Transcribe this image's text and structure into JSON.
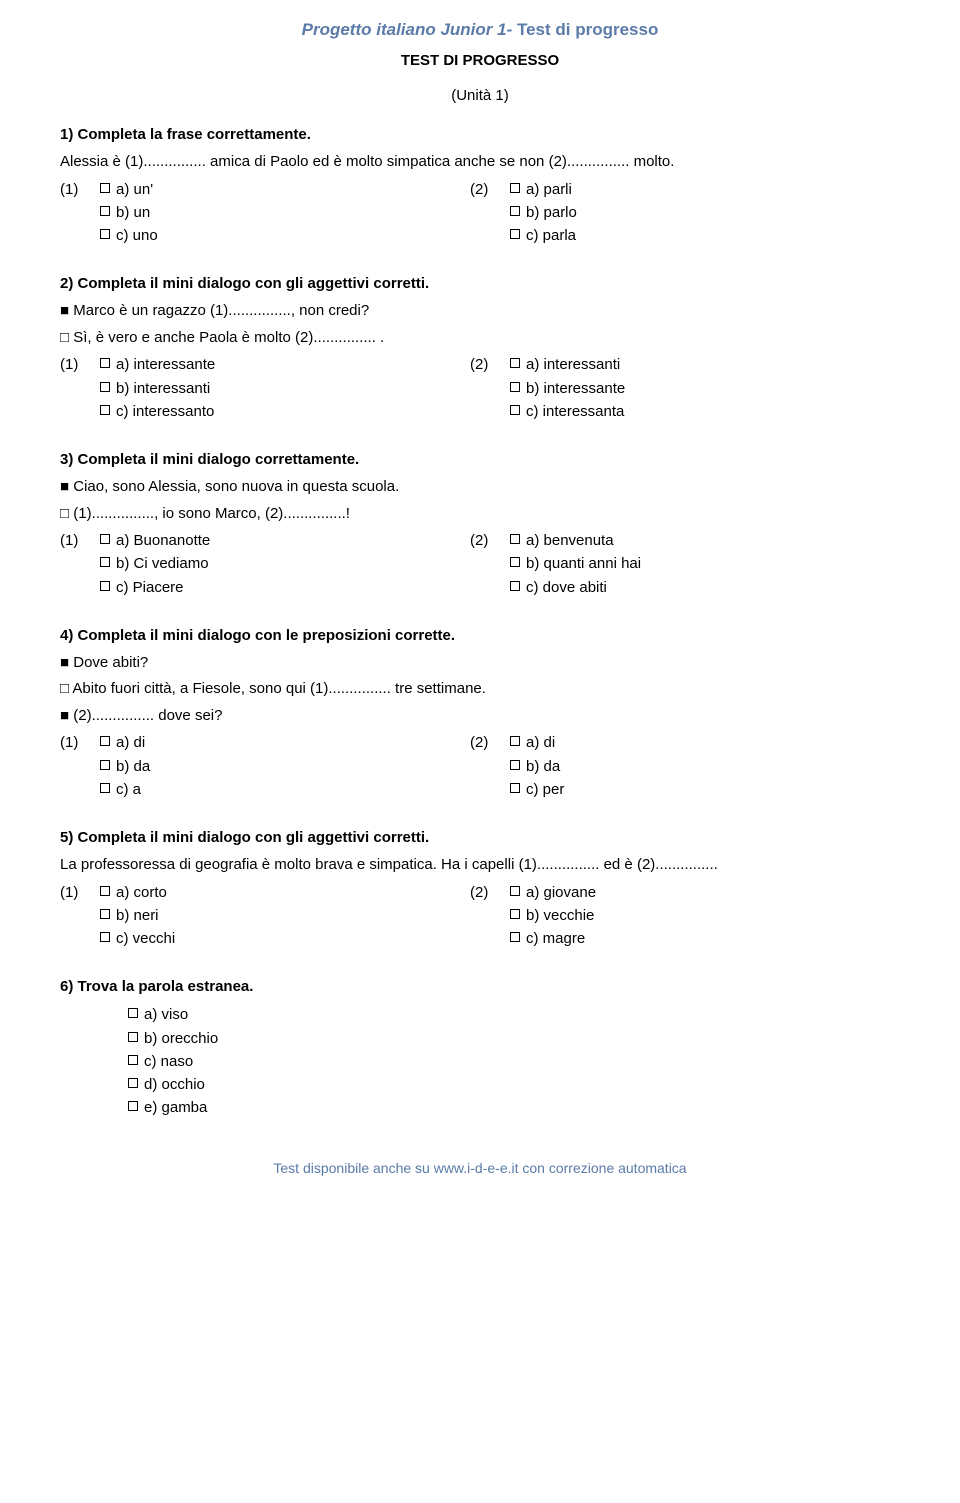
{
  "header": {
    "italic": "Progetto italiano Junior 1-",
    "bold": " Test di progresso",
    "subtitle": "TEST DI PROGRESSO",
    "unit": "(Unità 1)"
  },
  "q1": {
    "title": "1) Completa la frase correttamente.",
    "text": "Alessia è (1)............... amica di Paolo ed è molto simpatica anche se non (2)............... molto.",
    "m1": "(1)",
    "m2": "(2)",
    "a1": "a) un'",
    "b1": "b) un",
    "c1": "c) uno",
    "a2": "a) parli",
    "b2": "b) parlo",
    "c2": "c) parla"
  },
  "q2": {
    "title": "2) Completa il mini dialogo con gli aggettivi corretti.",
    "l1": "Marco è un ragazzo (1)..............., non credi?",
    "l2": "Sì, è vero e anche Paola è molto (2)............... .",
    "m1": "(1)",
    "m2": "(2)",
    "a1": "a) interessante",
    "b1": "b) interessanti",
    "c1": "c) interessanto",
    "a2": "a) interessanti",
    "b2": "b) interessante",
    "c2": "c) interessanta"
  },
  "q3": {
    "title": "3) Completa il mini dialogo correttamente.",
    "l1": "Ciao, sono Alessia, sono nuova in questa scuola.",
    "l2": "(1)..............., io sono Marco, (2)...............!",
    "m1": "(1)",
    "m2": "(2)",
    "a1": "a) Buonanotte",
    "b1": "b) Ci vediamo",
    "c1": "c) Piacere",
    "a2": "a) benvenuta",
    "b2": "b) quanti anni hai",
    "c2": "c) dove abiti"
  },
  "q4": {
    "title": "4) Completa il mini dialogo con le preposizioni corrette.",
    "l1": "Dove abiti?",
    "l2": "Abito fuori città, a Fiesole, sono qui (1)............... tre settimane.",
    "l3": "(2)............... dove sei?",
    "m1": "(1)",
    "m2": "(2)",
    "a1": "a) di",
    "b1": "b) da",
    "c1": "c) a",
    "a2": "a) di",
    "b2": "b) da",
    "c2": "c) per"
  },
  "q5": {
    "title": "5) Completa il mini dialogo con gli aggettivi corretti.",
    "text": "La professoressa di geografia è molto brava e simpatica. Ha i capelli (1)............... ed è (2)...............",
    "m1": "(1)",
    "m2": "(2)",
    "a1": "a) corto",
    "b1": "b) neri",
    "c1": "c) vecchi",
    "a2": "a) giovane",
    "b2": "b) vecchie",
    "c2": "c) magre"
  },
  "q6": {
    "title": "6) Trova la parola estranea.",
    "a": "a) viso",
    "b": "b) orecchio",
    "c": "c) naso",
    "d": "d) occhio",
    "e": "e) gamba"
  },
  "footer": "Test disponibile anche su www.i-d-e-e.it con correzione automatica"
}
